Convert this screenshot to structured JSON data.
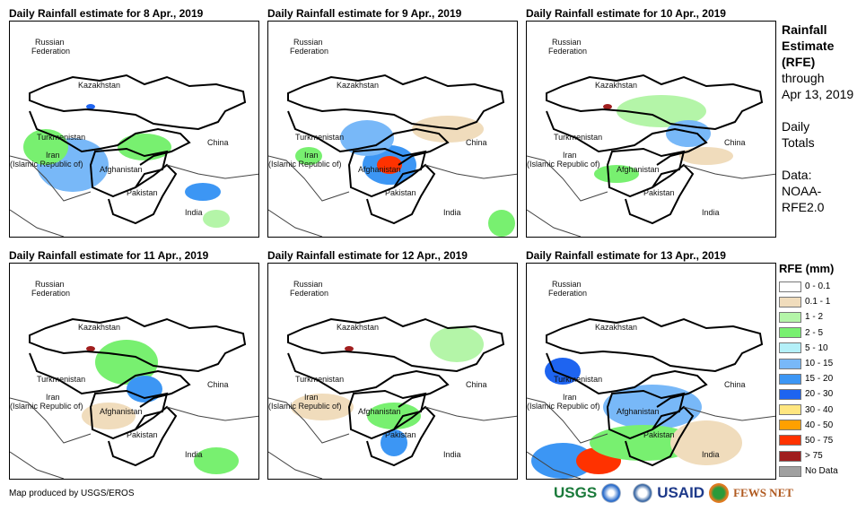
{
  "panels": [
    {
      "title": "Daily Rainfall estimate for 8 Apr., 2019"
    },
    {
      "title": "Daily Rainfall estimate for 9 Apr., 2019"
    },
    {
      "title": "Daily Rainfall estimate for 10 Apr., 2019"
    },
    {
      "title": "Daily Rainfall estimate for 11 Apr., 2019"
    },
    {
      "title": "Daily Rainfall estimate for 12 Apr., 2019"
    },
    {
      "title": "Daily Rainfall estimate for 13 Apr., 2019"
    }
  ],
  "countries": {
    "russia": "Russian",
    "russia2": "Federation",
    "kazakhstan": "Kazakhstan",
    "turkmenistan": "Turkmenistan",
    "iran": "Iran",
    "iran2": "(Islamic Republic of)",
    "afghanistan": "Afghanistan",
    "pakistan": "Pakistan",
    "china": "China",
    "india": "India"
  },
  "side": {
    "t1": "Rainfall",
    "t2": "Estimate",
    "t3": "(RFE)",
    "t4": "through",
    "t5": "Apr 13, 2019",
    "t6": "Daily",
    "t7": "Totals",
    "t8": "Data:",
    "t9": "NOAA-",
    "t10": "RFE2.0"
  },
  "legend": {
    "title": "RFE (mm)",
    "items": [
      {
        "label": "0 - 0.1",
        "color": "#ffffff"
      },
      {
        "label": "0.1 - 1",
        "color": "#f0dcbc"
      },
      {
        "label": "1 - 2",
        "color": "#b4f5a8"
      },
      {
        "label": "2 - 5",
        "color": "#78f070"
      },
      {
        "label": "5 - 10",
        "color": "#b4f0f8"
      },
      {
        "label": "10 - 15",
        "color": "#78b8f8"
      },
      {
        "label": "15 - 20",
        "color": "#3c96f4"
      },
      {
        "label": "20 - 30",
        "color": "#1e64f0"
      },
      {
        "label": "30 - 40",
        "color": "#ffe680"
      },
      {
        "label": "40 - 50",
        "color": "#ffa000"
      },
      {
        "label": "50 - 75",
        "color": "#ff3200"
      },
      {
        "label": "> 75",
        "color": "#a01e1e"
      },
      {
        "label": "No Data",
        "color": "#a0a0a0"
      }
    ]
  },
  "footer": "Map produced by USGS/EROS",
  "logos": {
    "usgs": "USGS",
    "usaid": "USAID",
    "fews": "FEWS NET"
  }
}
